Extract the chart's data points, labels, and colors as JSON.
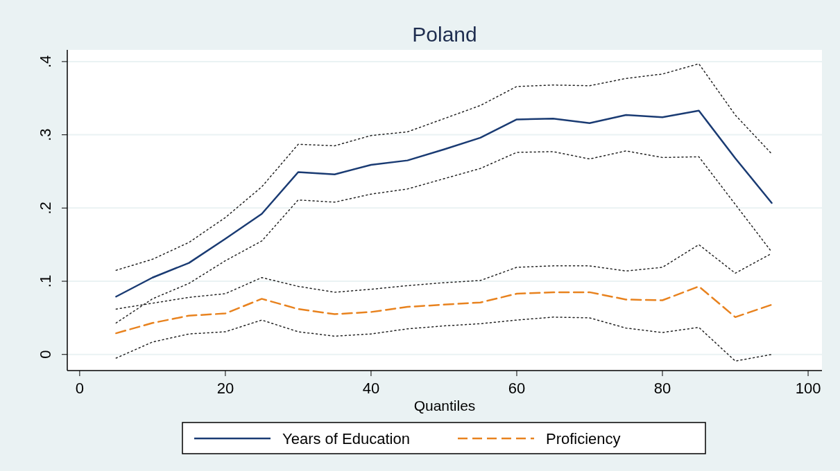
{
  "chart_data": {
    "type": "line",
    "title": "Poland",
    "xlabel": "Quantiles",
    "x": [
      5,
      10,
      15,
      20,
      25,
      30,
      35,
      40,
      45,
      50,
      55,
      60,
      65,
      70,
      75,
      80,
      85,
      90,
      95
    ],
    "series": [
      {
        "color": "#222222",
        "line_style": "dotted",
        "values": [
          0.115,
          0.13,
          0.153,
          0.187,
          0.229,
          0.287,
          0.285,
          0.299,
          0.304,
          0.322,
          0.34,
          0.366,
          0.368,
          0.367,
          0.377,
          0.383,
          0.397,
          0.327,
          0.274
        ]
      },
      {
        "color": "#222222",
        "line_style": "dotted",
        "values": [
          0.043,
          0.076,
          0.097,
          0.128,
          0.155,
          0.211,
          0.208,
          0.219,
          0.226,
          0.24,
          0.254,
          0.276,
          0.277,
          0.267,
          0.278,
          0.269,
          0.27,
          0.205,
          0.14
        ]
      },
      {
        "color": "#222222",
        "line_style": "dotted",
        "values": [
          0.062,
          0.07,
          0.078,
          0.083,
          0.105,
          0.093,
          0.085,
          0.089,
          0.094,
          0.098,
          0.101,
          0.119,
          0.121,
          0.121,
          0.114,
          0.119,
          0.15,
          0.111,
          0.138
        ]
      },
      {
        "color": "#222222",
        "line_style": "dotted",
        "values": [
          -0.005,
          0.017,
          0.028,
          0.031,
          0.047,
          0.031,
          0.025,
          0.028,
          0.035,
          0.039,
          0.042,
          0.047,
          0.051,
          0.05,
          0.036,
          0.03,
          0.037,
          -0.009,
          0.0
        ]
      },
      {
        "name": "Years of Education",
        "color": "#1a3b73",
        "line_style": "solid",
        "values": [
          0.079,
          0.105,
          0.125,
          0.158,
          0.192,
          0.249,
          0.246,
          0.259,
          0.265,
          0.28,
          0.296,
          0.321,
          0.322,
          0.316,
          0.327,
          0.324,
          0.333,
          0.268,
          0.207
        ]
      },
      {
        "name": "Proficiency",
        "color": "#e8821e",
        "line_style": "dashed",
        "values": [
          0.029,
          0.043,
          0.053,
          0.056,
          0.076,
          0.062,
          0.055,
          0.058,
          0.065,
          0.068,
          0.071,
          0.083,
          0.085,
          0.085,
          0.075,
          0.074,
          0.093,
          0.051,
          0.068
        ]
      }
    ],
    "xlim": [
      -1.7,
      101.9
    ],
    "xticks": [
      0,
      20,
      40,
      60,
      80,
      100
    ],
    "ylim": [
      -0.022,
      0.416
    ],
    "yticks": [
      {
        "value": 0,
        "label": "0"
      },
      {
        "value": 0.1,
        "label": ".1"
      },
      {
        "value": 0.2,
        "label": ".2"
      },
      {
        "value": 0.3,
        "label": ".3"
      },
      {
        "value": 0.4,
        "label": ".4"
      }
    ],
    "grid": "y",
    "legend": "bottom",
    "marker": "none"
  }
}
